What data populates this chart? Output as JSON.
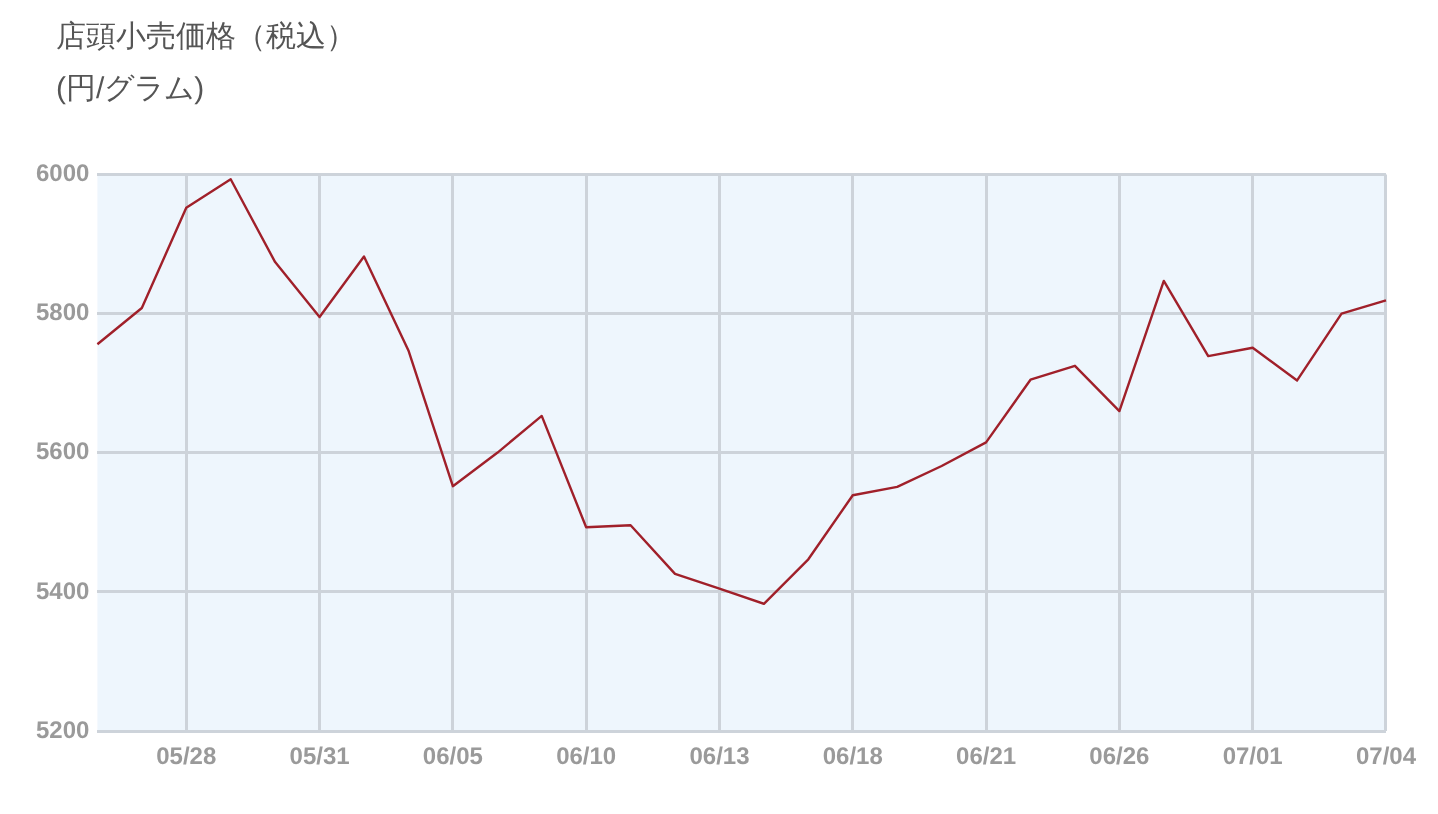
{
  "chart_data": {
    "type": "line",
    "title": "店頭小売価格（税込）",
    "subtitle": "(円/グラム)",
    "categories": [
      null,
      null,
      "05/28",
      null,
      null,
      "05/31",
      null,
      null,
      "06/05",
      null,
      null,
      "06/10",
      null,
      null,
      "06/13",
      null,
      null,
      "06/18",
      null,
      null,
      "06/21",
      null,
      null,
      "06/26",
      null,
      null,
      "07/01",
      null,
      null,
      "07/04"
    ],
    "series": [
      {
        "color": "#a0202a",
        "values": [
          5756,
          5808,
          5952,
          5993,
          5874,
          5795,
          5882,
          5747,
          5552,
          5600,
          5653,
          5493,
          5496,
          5426,
          5405,
          5383,
          5447,
          5539,
          5551,
          5581,
          5615,
          5705,
          5725,
          5660,
          5847,
          5739,
          5751,
          5704,
          5800,
          5819
        ]
      }
    ],
    "ylim": [
      5200,
      6000
    ],
    "yticks": [
      5200,
      5400,
      5600,
      5800,
      6000
    ],
    "grid": true,
    "legend": false,
    "marker": "none",
    "line_style": "solid"
  }
}
